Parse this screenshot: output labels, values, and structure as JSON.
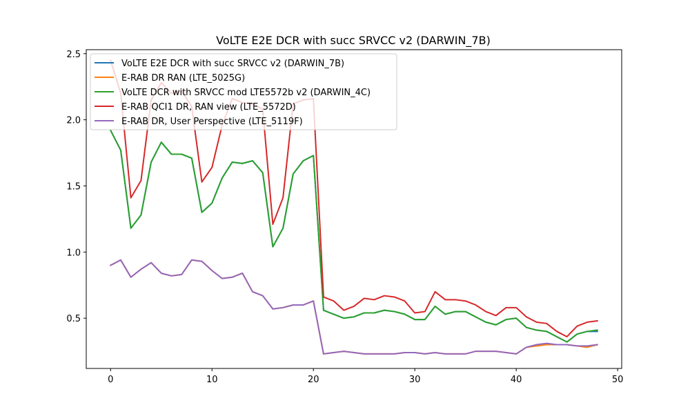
{
  "chart_data": {
    "type": "line",
    "title": "VoLTE E2E DCR with succ SRVCC v2 (DARWIN_7B)",
    "xlabel": "",
    "ylabel": "",
    "xlim": [
      -2.4,
      50.4
    ],
    "ylim": [
      0.12,
      2.53
    ],
    "xticks": [
      0,
      10,
      20,
      30,
      40,
      50
    ],
    "yticks": [
      0.5,
      1.0,
      1.5,
      2.0,
      2.5
    ],
    "xtick_labels": [
      "0",
      "10",
      "20",
      "30",
      "40",
      "50"
    ],
    "ytick_labels": [
      "0.5",
      "1.0",
      "1.5",
      "2.0",
      "2.5"
    ],
    "legend_position": "upper-left",
    "grid": false,
    "x": [
      0,
      1,
      2,
      3,
      4,
      5,
      6,
      7,
      8,
      9,
      10,
      11,
      12,
      13,
      14,
      15,
      16,
      17,
      18,
      19,
      20,
      21,
      22,
      23,
      24,
      25,
      26,
      27,
      28,
      29,
      30,
      31,
      32,
      33,
      34,
      35,
      36,
      37,
      38,
      39,
      40,
      41,
      42,
      43,
      44,
      45,
      46,
      47,
      48
    ],
    "series": [
      {
        "name": "VoLTE E2E DCR with succ SRVCC v2 (DARWIN_7B)",
        "color": "#1f77b4",
        "values": [
          1.92,
          1.77,
          1.18,
          1.28,
          1.68,
          1.83,
          1.74,
          1.74,
          1.71,
          1.3,
          1.37,
          1.56,
          1.68,
          1.67,
          1.69,
          1.6,
          1.04,
          1.18,
          1.59,
          1.69,
          1.73,
          0.56,
          0.53,
          0.5,
          0.51,
          0.54,
          0.54,
          0.56,
          0.55,
          0.53,
          0.49,
          0.49,
          0.59,
          0.53,
          0.55,
          0.55,
          0.51,
          0.47,
          0.45,
          0.49,
          0.5,
          0.43,
          0.41,
          0.4,
          0.36,
          0.32,
          0.38,
          0.4,
          0.4
        ]
      },
      {
        "name": "E-RAB DR RAN (LTE_5025G)",
        "color": "#ff7f0e",
        "values": [
          0.9,
          0.94,
          0.81,
          0.87,
          0.92,
          0.84,
          0.82,
          0.83,
          0.94,
          0.93,
          0.86,
          0.8,
          0.81,
          0.84,
          0.7,
          0.67,
          0.57,
          0.58,
          0.6,
          0.6,
          0.63,
          0.23,
          0.24,
          0.25,
          0.24,
          0.23,
          0.23,
          0.23,
          0.23,
          0.24,
          0.24,
          0.23,
          0.24,
          0.23,
          0.23,
          0.23,
          0.25,
          0.25,
          0.25,
          0.24,
          0.23,
          0.28,
          0.29,
          0.3,
          0.3,
          0.3,
          0.29,
          0.28,
          0.3
        ]
      },
      {
        "name": "VoLTE DCR with SRVCC mod LTE5572b v2 (DARWIN_4C)",
        "color": "#2ca02c",
        "values": [
          1.92,
          1.77,
          1.18,
          1.28,
          1.68,
          1.83,
          1.74,
          1.74,
          1.71,
          1.3,
          1.37,
          1.56,
          1.68,
          1.67,
          1.69,
          1.6,
          1.04,
          1.18,
          1.59,
          1.69,
          1.73,
          0.56,
          0.53,
          0.5,
          0.51,
          0.54,
          0.54,
          0.56,
          0.55,
          0.53,
          0.49,
          0.49,
          0.59,
          0.53,
          0.55,
          0.55,
          0.51,
          0.47,
          0.45,
          0.49,
          0.5,
          0.43,
          0.41,
          0.4,
          0.36,
          0.32,
          0.38,
          0.4,
          0.41
        ]
      },
      {
        "name": "E-RAB QCI1 DR, RAN view (LTE_5572D)",
        "color": "#d62728",
        "values": [
          2.45,
          2.2,
          1.41,
          1.54,
          2.15,
          2.28,
          2.2,
          2.22,
          2.1,
          1.53,
          1.64,
          1.96,
          2.16,
          2.13,
          2.12,
          2.08,
          1.21,
          1.41,
          2.12,
          2.15,
          2.16,
          0.66,
          0.63,
          0.56,
          0.59,
          0.65,
          0.64,
          0.67,
          0.66,
          0.63,
          0.54,
          0.55,
          0.7,
          0.64,
          0.64,
          0.63,
          0.6,
          0.55,
          0.52,
          0.58,
          0.58,
          0.51,
          0.47,
          0.46,
          0.4,
          0.36,
          0.44,
          0.47,
          0.48
        ]
      },
      {
        "name": "E-RAB DR, User Perspective (LTE_5119F)",
        "color": "#9467bd",
        "values": [
          0.9,
          0.94,
          0.81,
          0.87,
          0.92,
          0.84,
          0.82,
          0.83,
          0.94,
          0.93,
          0.86,
          0.8,
          0.81,
          0.84,
          0.7,
          0.67,
          0.57,
          0.58,
          0.6,
          0.6,
          0.63,
          0.23,
          0.24,
          0.25,
          0.24,
          0.23,
          0.23,
          0.23,
          0.23,
          0.24,
          0.24,
          0.23,
          0.24,
          0.23,
          0.23,
          0.23,
          0.25,
          0.25,
          0.25,
          0.24,
          0.23,
          0.28,
          0.3,
          0.31,
          0.3,
          0.3,
          0.29,
          0.29,
          0.3
        ]
      }
    ]
  }
}
